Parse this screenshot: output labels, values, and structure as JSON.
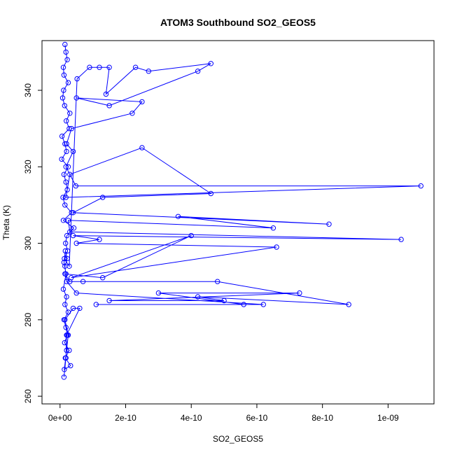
{
  "chart_data": {
    "type": "line",
    "title": "ATOM3 Southbound SO2_GEOS5",
    "xlabel": "SO2_GEOS5",
    "ylabel": "Theta (K)",
    "xlim": [
      -5.5e-11,
      1.14e-09
    ],
    "ylim": [
      258,
      353
    ],
    "grid": false,
    "x_ticks": [
      0,
      2e-10,
      4e-10,
      6e-10,
      8e-10,
      1e-09
    ],
    "x_tick_labels": [
      "0e+00",
      "2e-10",
      "4e-10",
      "6e-10",
      "8e-10",
      "1e-09"
    ],
    "y_ticks": [
      260,
      280,
      300,
      320,
      340
    ],
    "y_tick_labels": [
      "260",
      "280",
      "300",
      "320",
      "340"
    ],
    "series": [
      {
        "color": "#0000ff",
        "x": [
          1.5e-11,
          1.8e-11,
          2.2e-11,
          1e-11,
          1.2e-11,
          2.5e-11,
          1.1e-11,
          8e-12,
          1.4e-11,
          3e-11,
          1.9e-11,
          2.8e-11,
          6e-12,
          1.5e-11,
          2e-11,
          5e-12,
          2.5e-11,
          1.2e-11,
          1.8e-11,
          2.2e-11,
          9e-12,
          1.5e-11,
          3.5e-11,
          1e-11,
          4.2e-11,
          2.1e-11,
          1.7e-11,
          2.3e-11,
          1.3e-11,
          2.8e-11,
          5.2e-11,
          9e-11,
          1.2e-10,
          1.5e-10,
          1.4e-10,
          2.3e-10,
          2.7e-10,
          4.6e-10,
          4.2e-10,
          1.5e-10,
          5e-11,
          2.5e-10,
          2.2e-10,
          3.5e-11,
          2e-11,
          4e-11,
          1.8e-11,
          4.8e-11,
          1.1e-09,
          1.8e-11,
          3e-11,
          2.5e-10,
          4.6e-10,
          1.3e-10,
          4e-11,
          8.2e-10,
          3.6e-10,
          6.5e-10,
          2.5e-11,
          3e-11,
          1.04e-09,
          4e-11,
          1.2e-10,
          5e-11,
          6.6e-10,
          3.4e-11,
          4e-10,
          1.3e-10,
          1.5e-11,
          3e-11,
          7e-11,
          4.8e-10,
          8.8e-10,
          4.2e-10,
          5e-10,
          1.5e-10,
          7.3e-10,
          3e-10,
          5.6e-10,
          1.1e-10,
          6.2e-10,
          5e-11,
          2e-11,
          1.5e-11,
          2.2e-11,
          1.6e-11,
          1.2e-11,
          1.8e-11,
          1e-11,
          2e-11,
          1.5e-11,
          2.5e-11,
          1.2e-11,
          1.8e-11,
          2.2e-11,
          1.4e-11,
          2.8e-11,
          1.6e-11,
          3.2e-11,
          1.3e-11,
          2e-11,
          2.5e-11,
          1.5e-11,
          4e-11,
          6e-11,
          2e-11,
          1.8e-11,
          1.2e-11
        ],
        "y": [
          352,
          350,
          348,
          346,
          344,
          342,
          340,
          338,
          336,
          334,
          332,
          330,
          328,
          326,
          324,
          322,
          320,
          318,
          316,
          314,
          312,
          310,
          308,
          306,
          304,
          302,
          300,
          298,
          296,
          294,
          343,
          346,
          346,
          346,
          339,
          346,
          345,
          347,
          345,
          336,
          338,
          337,
          334,
          330,
          326,
          324,
          320,
          315,
          315,
          312,
          318,
          325,
          313,
          312,
          308,
          305,
          307,
          304,
          306,
          303,
          301,
          302,
          301,
          300,
          299,
          291,
          302,
          291,
          292,
          290,
          290,
          290,
          284,
          286,
          285,
          285,
          287,
          287,
          284,
          284,
          284,
          287,
          290,
          294,
          296,
          298,
          295,
          292,
          288,
          286,
          284,
          282,
          280,
          278,
          276,
          274,
          272,
          270,
          268,
          267,
          272,
          276,
          280,
          283,
          283,
          276,
          270,
          265
        ]
      }
    ]
  }
}
